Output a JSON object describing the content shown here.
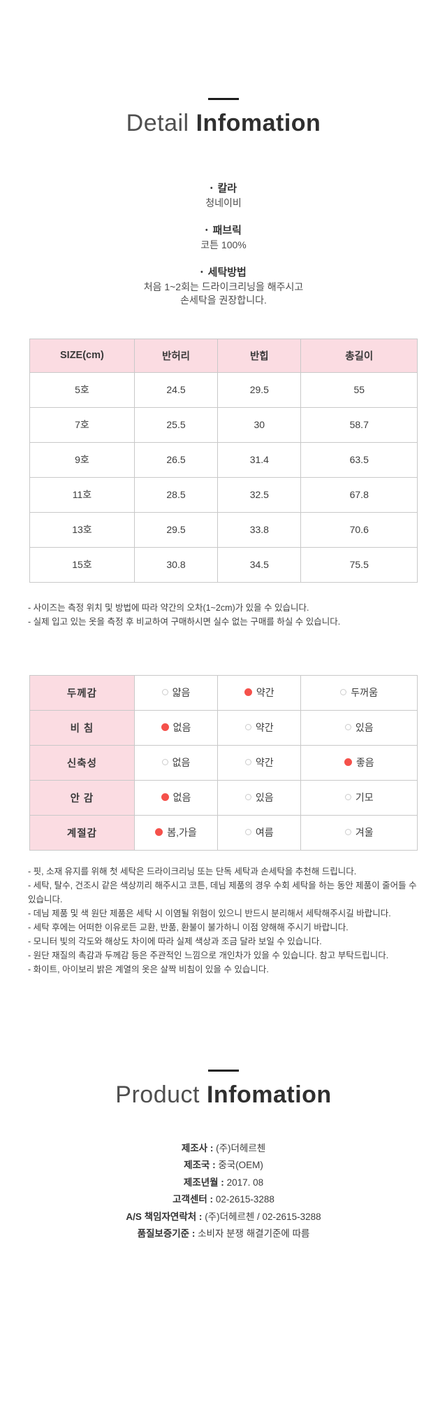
{
  "colors": {
    "pink": "#fbdce2",
    "red": "#f5514b"
  },
  "detail_section": {
    "title_light": "Detail",
    "title_bold": "Infomation",
    "specs": [
      {
        "label": "칼라",
        "lines": [
          "청네이비"
        ]
      },
      {
        "label": "패브릭",
        "lines": [
          "코튼 100%"
        ]
      },
      {
        "label": "세탁방법",
        "lines": [
          "처음 1~2회는 드라이크리닝을 해주시고",
          "손세탁을 권장합니다."
        ]
      }
    ]
  },
  "size_table": {
    "headers": [
      "SIZE(cm)",
      "반허리",
      "반힙",
      "총길이"
    ],
    "rows": [
      [
        "5호",
        "24.5",
        "29.5",
        "55"
      ],
      [
        "7호",
        "25.5",
        "30",
        "58.7"
      ],
      [
        "9호",
        "26.5",
        "31.4",
        "63.5"
      ],
      [
        "11호",
        "28.5",
        "32.5",
        "67.8"
      ],
      [
        "13호",
        "29.5",
        "33.8",
        "70.6"
      ],
      [
        "15호",
        "30.8",
        "34.5",
        "75.5"
      ]
    ]
  },
  "size_notes": [
    "- 사이즈는 측정 위치 및 방법에 따라 약간의 오차(1~2cm)가 있을 수 있습니다.",
    "- 실제 입고 있는 옷을 측정 후 비교하여 구매하시면 실수 없는 구매를 하실 수 있습니다."
  ],
  "attribute_table": {
    "rows": [
      {
        "label": "두께감",
        "options": [
          {
            "text": "얇음",
            "selected": false
          },
          {
            "text": "약간",
            "selected": true
          },
          {
            "text": "두꺼움",
            "selected": false
          }
        ]
      },
      {
        "label": "비 침",
        "options": [
          {
            "text": "없음",
            "selected": true
          },
          {
            "text": "약간",
            "selected": false
          },
          {
            "text": "있음",
            "selected": false
          }
        ]
      },
      {
        "label": "신축성",
        "options": [
          {
            "text": "없음",
            "selected": false
          },
          {
            "text": "약간",
            "selected": false
          },
          {
            "text": "좋음",
            "selected": true
          }
        ]
      },
      {
        "label": "안 감",
        "options": [
          {
            "text": "없음",
            "selected": true
          },
          {
            "text": "있음",
            "selected": false
          },
          {
            "text": "기모",
            "selected": false
          }
        ]
      },
      {
        "label": "계절감",
        "options": [
          {
            "text": "봄,가을",
            "selected": true
          },
          {
            "text": "여름",
            "selected": false
          },
          {
            "text": "겨울",
            "selected": false
          }
        ]
      }
    ]
  },
  "care_notes": [
    "- 핏, 소재 유지를 위해 첫 세탁은 드라이크리닝 또는 단독 세탁과 손세탁을 추천해 드립니다.",
    "- 세탁, 탈수, 건조시 같은 색상끼리 해주시고 코튼, 데님 제품의 경우 수회 세탁을 하는 동안 제품이 줄어들 수 있습니다.",
    "- 데님 제품 및 색 원단 제품은 세탁 시 이염될 위험이 있으니 반드시 분리해서 세탁해주시길 바랍니다.",
    "- 세탁 후에는 어떠한 이유로든 교환, 반품, 환불이 불가하니 이점 양해해 주시기 바랍니다.",
    "- 모니터 빛의 각도와 해상도 차이에 따라 실제 색상과 조금 달라 보일 수 있습니다.",
    "- 원단 재질의 촉감과 두께감 등은 주관적인 느낌으로 개인차가 있을 수 있습니다. 참고 부탁드립니다.",
    "- 화이트, 아이보리 밝은 계열의 옷은 살짝 비침이 있을 수 있습니다."
  ],
  "product_section": {
    "title_light": "Product",
    "title_bold": "Infomation"
  },
  "product_info": [
    {
      "label": "제조사 :",
      "value": "(주)더헤르첸"
    },
    {
      "label": "제조국 :",
      "value": "중국(OEM)"
    },
    {
      "label": "제조년월 :",
      "value": "2017. 08"
    },
    {
      "label": "고객센터 :",
      "value": "02-2615-3288"
    },
    {
      "label": "A/S 책임자연락처 :",
      "value": "(주)더헤르첸 / 02-2615-3288"
    },
    {
      "label": "품질보증기준 :",
      "value": "소비자 분쟁 해결기준에 따름"
    }
  ]
}
